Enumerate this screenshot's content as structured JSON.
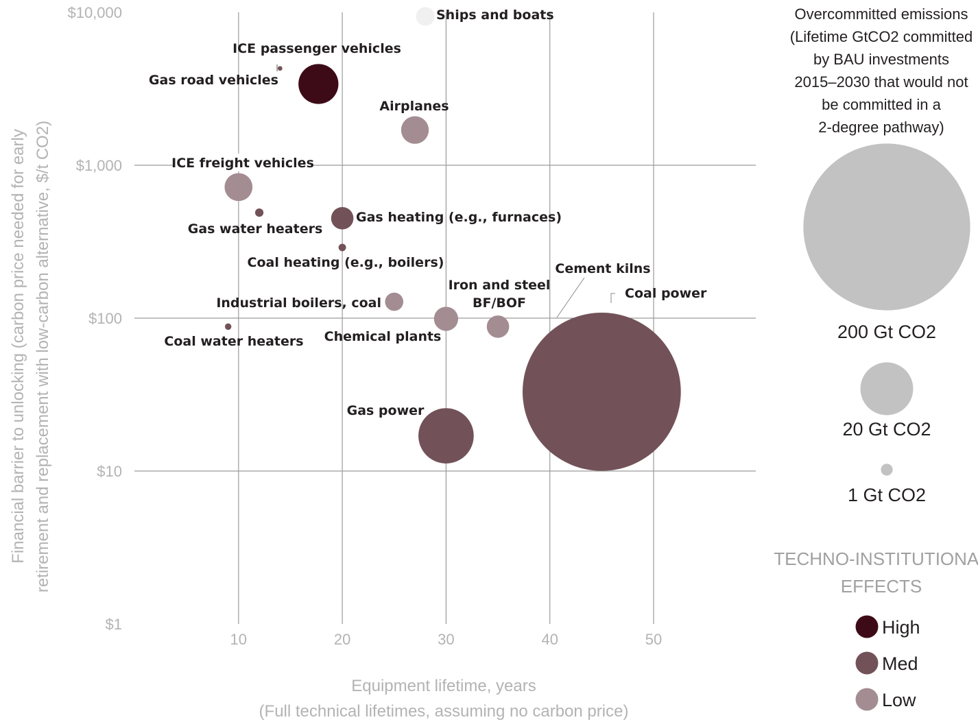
{
  "chart_data": {
    "type": "scatter",
    "subtype": "bubble",
    "xlabel": "Equipment lifetime, years",
    "xlabel_sub": "(Full technical lifetimes, assuming no carbon price)",
    "ylabel": "Financial barrier to unlocking (carbon price needed for early",
    "ylabel_2": "retirement and replacement with low-carbon alternative, $/t CO2)",
    "x_ticks": [
      "10",
      "20",
      "30",
      "40",
      "50"
    ],
    "y_ticks": [
      "$1",
      "$10",
      "$100",
      "$1,000",
      "$10,000"
    ],
    "y_scale": "log",
    "ylim": [
      1,
      10000
    ],
    "grid": true,
    "colors": {
      "High": "#3d0b17",
      "Med": "#725258",
      "Low": "#a38d92",
      "Unclassified": "#f0f0f0"
    },
    "points": [
      {
        "name": "Ships and boats",
        "x": 28,
        "y": 9400,
        "size_gt": 2.5,
        "effect": "Unclassified"
      },
      {
        "name": "ICE passenger vehicles",
        "x": 14,
        "y": 4300,
        "size_gt": 0.1,
        "effect": "Med"
      },
      {
        "name": "Gas road vehicles",
        "x": 17.7,
        "y": 3400,
        "size_gt": 11.5,
        "effect": "High"
      },
      {
        "name": "Airplanes",
        "x": 27,
        "y": 1700,
        "size_gt": 5.5,
        "effect": "Low"
      },
      {
        "name": "ICE freight vehicles",
        "x": 10,
        "y": 720,
        "size_gt": 5.6,
        "effect": "Low"
      },
      {
        "name": "Gas water heaters",
        "x": 12,
        "y": 490,
        "size_gt": 0.5,
        "effect": "Med"
      },
      {
        "name": "Gas heating (e.g., furnaces)",
        "x": 20,
        "y": 450,
        "size_gt": 3.6,
        "effect": "Med"
      },
      {
        "name": "Coal heating (e.g., boilers)",
        "x": 20,
        "y": 290,
        "size_gt": 0.4,
        "effect": "Med"
      },
      {
        "name": "Industrial boilers, coal",
        "x": 25,
        "y": 128,
        "size_gt": 2.4,
        "effect": "Low"
      },
      {
        "name": "Chemical plants",
        "x": 30,
        "y": 99,
        "size_gt": 4.2,
        "effect": "Low"
      },
      {
        "name": "Iron and steel",
        "name_2": "BF/BOF",
        "x": 35,
        "y": 88,
        "size_gt": 3.6,
        "effect": "Low"
      },
      {
        "name": "Coal water heaters",
        "x": 9,
        "y": 88,
        "size_gt": 0.3,
        "effect": "Med"
      },
      {
        "name": "Gas power",
        "x": 30,
        "y": 17,
        "size_gt": 22,
        "effect": "Med"
      },
      {
        "name": "Coal power",
        "x": 45,
        "y": 33,
        "size_gt": 180,
        "effect": "Med"
      },
      {
        "name": "Cement kilns",
        "x": 41,
        "y": 110,
        "size_gt": 0,
        "effect": "Med"
      }
    ],
    "size_legend": {
      "title_lines": [
        "Overcommitted emissions",
        "(Lifetime GtCO2 committed",
        "by BAU investments",
        "2015–2030 that would not",
        "be committed in a",
        "2-degree pathway)"
      ],
      "entries": [
        {
          "label": "200 Gt CO2",
          "gt": 200
        },
        {
          "label": "20 Gt CO2",
          "gt": 20
        },
        {
          "label": "1 Gt CO2",
          "gt": 1
        }
      ]
    },
    "color_legend": {
      "title_lines": [
        "TECHNO-INSTITUTIONAL",
        "EFFECTS"
      ],
      "entries": [
        {
          "label": "High",
          "color": "#3d0b17"
        },
        {
          "label": "Med",
          "color": "#725258"
        },
        {
          "label": "Low",
          "color": "#a38d92"
        }
      ]
    }
  }
}
